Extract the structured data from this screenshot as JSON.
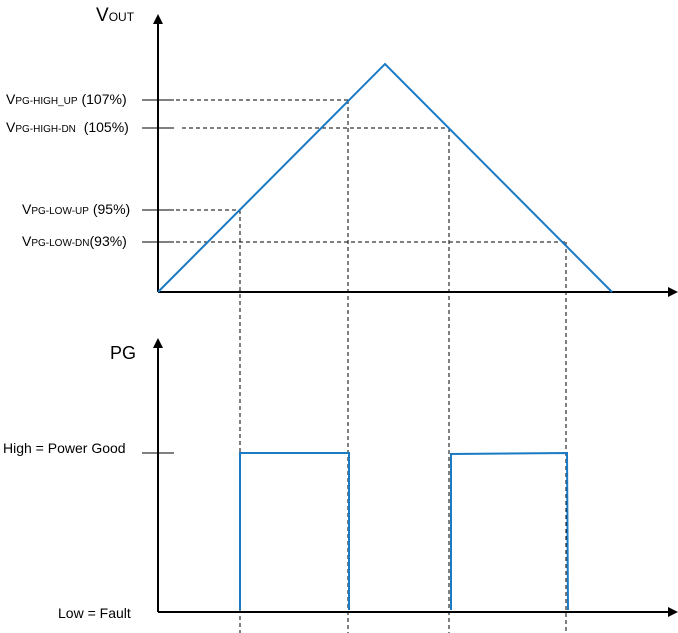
{
  "top_axis": {
    "label_main": "V",
    "label_sub": "OUT"
  },
  "thresholds": [
    {
      "main": "V",
      "sub": "PG-HIGH_UP",
      "pct": "(107%)"
    },
    {
      "main": "V",
      "sub": "PG-HIGH-DN",
      "pct": "(105%)"
    },
    {
      "main": "V",
      "sub": "PG-LOW-UP",
      "pct": "(95%)"
    },
    {
      "main": "V",
      "sub": "PG-LOW-DN",
      "pct": "(93%)"
    }
  ],
  "bottom_axis": {
    "label": "PG",
    "high_label": "High = Power Good",
    "low_label": "Low = Fault"
  },
  "colors": {
    "signal": "#1a7ac4",
    "axis": "#000000"
  }
}
